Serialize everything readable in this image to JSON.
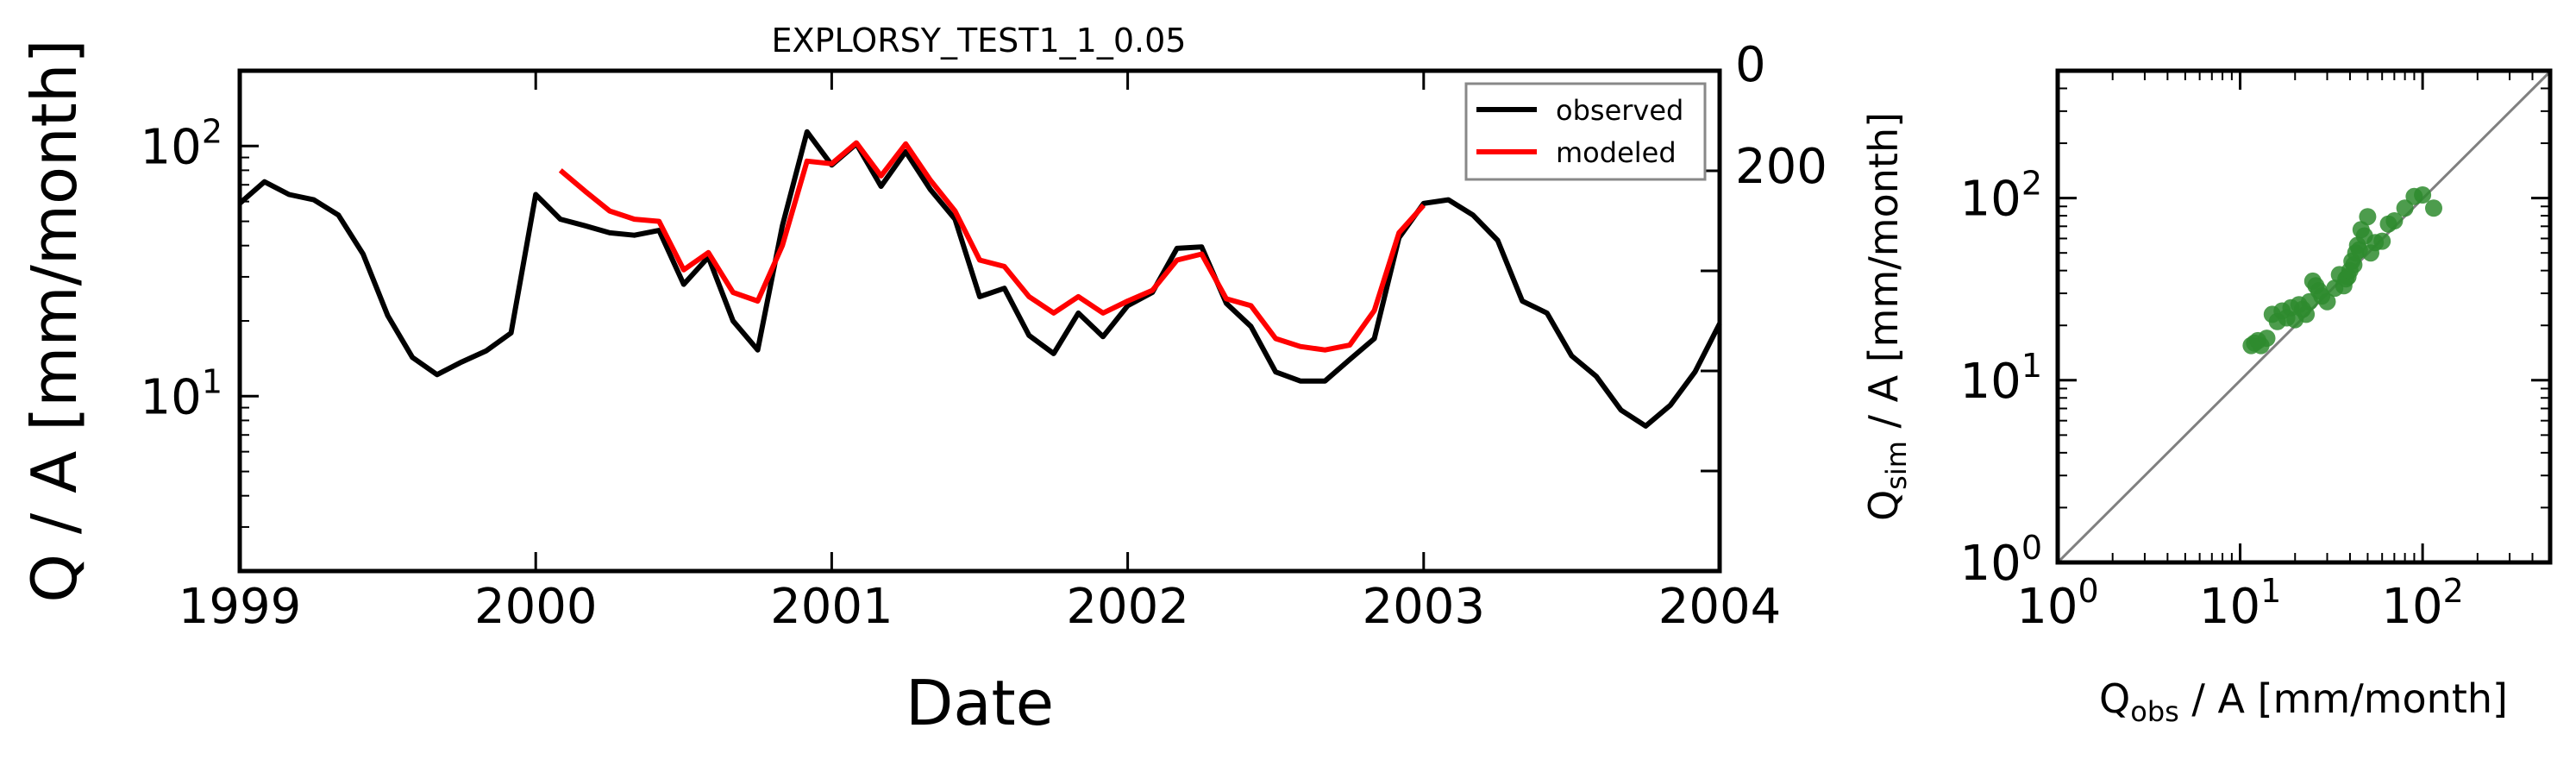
{
  "chart_data": [
    {
      "type": "line",
      "title": "EXPLORSY_TEST1_1_0.05",
      "xlabel": "Date",
      "ylabel": "Q / A [mm/month]",
      "xlim": [
        "1999-01",
        "2004-01"
      ],
      "ylim": [
        2,
        200
      ],
      "yscale": "log",
      "x_ticks": [
        "1999",
        "2000",
        "2001",
        "2002",
        "2003",
        "2004"
      ],
      "y_ticks": [
        {
          "base": "10",
          "exp": "1",
          "value": 10
        },
        {
          "base": "10",
          "exp": "2",
          "value": 100
        }
      ],
      "right_ticks": [
        "0",
        "200"
      ],
      "grid": false,
      "legend": "top-right",
      "series": [
        {
          "name": "observed",
          "color": "#000000",
          "x": [
            "1999-01",
            "1999-02",
            "1999-03",
            "1999-04",
            "1999-05",
            "1999-06",
            "1999-07",
            "1999-08",
            "1999-09",
            "1999-10",
            "1999-11",
            "1999-12",
            "2000-01",
            "2000-02",
            "2000-03",
            "2000-04",
            "2000-05",
            "2000-06",
            "2000-07",
            "2000-08",
            "2000-09",
            "2000-10",
            "2000-11",
            "2000-12",
            "2001-01",
            "2001-02",
            "2001-03",
            "2001-04",
            "2001-05",
            "2001-06",
            "2001-07",
            "2001-08",
            "2001-09",
            "2001-10",
            "2001-11",
            "2001-12",
            "2002-01",
            "2002-02",
            "2002-03",
            "2002-04",
            "2002-05",
            "2002-06",
            "2002-07",
            "2002-08",
            "2002-09",
            "2002-10",
            "2002-11",
            "2002-12",
            "2003-01",
            "2003-02",
            "2003-03",
            "2003-04",
            "2003-05",
            "2003-06",
            "2003-07",
            "2003-08",
            "2003-09",
            "2003-10",
            "2003-11",
            "2003-12",
            "2004-01"
          ],
          "y": [
            59,
            72,
            64,
            61,
            53,
            37,
            21,
            14.3,
            12.2,
            13.7,
            15.2,
            17.9,
            64,
            51,
            48,
            45,
            44,
            46,
            28,
            36,
            20,
            15.3,
            48,
            114,
            84,
            102,
            69,
            95,
            67,
            51,
            25,
            27,
            17.5,
            14.8,
            21.5,
            17.3,
            23,
            26,
            39,
            39.5,
            23.5,
            19,
            12.5,
            11.5,
            11.5,
            14,
            17,
            43,
            59,
            61,
            53,
            42,
            24,
            21.5,
            14.5,
            12,
            8.8,
            7.6,
            9.2,
            12.5,
            19.5
          ]
        },
        {
          "name": "modeled",
          "color": "#ff0000",
          "x": [
            "2000-02",
            "2000-03",
            "2000-04",
            "2000-05",
            "2000-06",
            "2000-07",
            "2000-08",
            "2000-09",
            "2000-10",
            "2000-11",
            "2000-12",
            "2001-01",
            "2001-02",
            "2001-03",
            "2001-04",
            "2001-05",
            "2001-06",
            "2001-07",
            "2001-08",
            "2001-09",
            "2001-10",
            "2001-11",
            "2001-12",
            "2002-01",
            "2002-02",
            "2002-03",
            "2002-04",
            "2002-05",
            "2002-06",
            "2002-07",
            "2002-08",
            "2002-09",
            "2002-10",
            "2002-11",
            "2002-12",
            "2003-01"
          ],
          "y": [
            80,
            66,
            55,
            51,
            50,
            32,
            37.5,
            26,
            24,
            40,
            87,
            85,
            103,
            76,
            102,
            73,
            55,
            35,
            33,
            25,
            21.5,
            25,
            21.5,
            24,
            26.5,
            35,
            37,
            24.5,
            23,
            17,
            15.8,
            15.3,
            16,
            22,
            45,
            58
          ]
        }
      ]
    },
    {
      "type": "scatter",
      "xlabel": {
        "base": "Q",
        "sub": "obs",
        "rest": " / A [mm/month]"
      },
      "ylabel": {
        "base": "Q",
        "sub": "sim",
        "rest": " / A [mm/month]"
      },
      "xscale": "log",
      "yscale": "log",
      "xlim": [
        1,
        500
      ],
      "ylim": [
        1,
        500
      ],
      "x_ticks": [
        {
          "base": "10",
          "exp": "0",
          "value": 1
        },
        {
          "base": "10",
          "exp": "1",
          "value": 10
        },
        {
          "base": "10",
          "exp": "2",
          "value": 100
        }
      ],
      "y_ticks": [
        {
          "base": "10",
          "exp": "0",
          "value": 1
        },
        {
          "base": "10",
          "exp": "1",
          "value": 10
        },
        {
          "base": "10",
          "exp": "2",
          "value": 100
        }
      ],
      "grid": false,
      "point_color": "#2e8b2e",
      "reference_line": "1:1",
      "points": [
        [
          11.5,
          15.5
        ],
        [
          12,
          16
        ],
        [
          12.5,
          16.5
        ],
        [
          13,
          15.5
        ],
        [
          14,
          17
        ],
        [
          15,
          23
        ],
        [
          16,
          21
        ],
        [
          17,
          24
        ],
        [
          18,
          22
        ],
        [
          19,
          25
        ],
        [
          20,
          21.5
        ],
        [
          21,
          26
        ],
        [
          22,
          24.5
        ],
        [
          23,
          23
        ],
        [
          24,
          27
        ],
        [
          25,
          35
        ],
        [
          26,
          33
        ],
        [
          27,
          31
        ],
        [
          28,
          29
        ],
        [
          30,
          27
        ],
        [
          33,
          32
        ],
        [
          35,
          38
        ],
        [
          37,
          33
        ],
        [
          38,
          36
        ],
        [
          39,
          37
        ],
        [
          40,
          40
        ],
        [
          41,
          45
        ],
        [
          42,
          43
        ],
        [
          43,
          50
        ],
        [
          44,
          55
        ],
        [
          45,
          52
        ],
        [
          46,
          67
        ],
        [
          48,
          62
        ],
        [
          50,
          79
        ],
        [
          52,
          50
        ],
        [
          55,
          57
        ],
        [
          60,
          58
        ],
        [
          65,
          72
        ],
        [
          70,
          75
        ],
        [
          80,
          88
        ],
        [
          90,
          102
        ],
        [
          100,
          104
        ],
        [
          115,
          88
        ]
      ]
    }
  ]
}
